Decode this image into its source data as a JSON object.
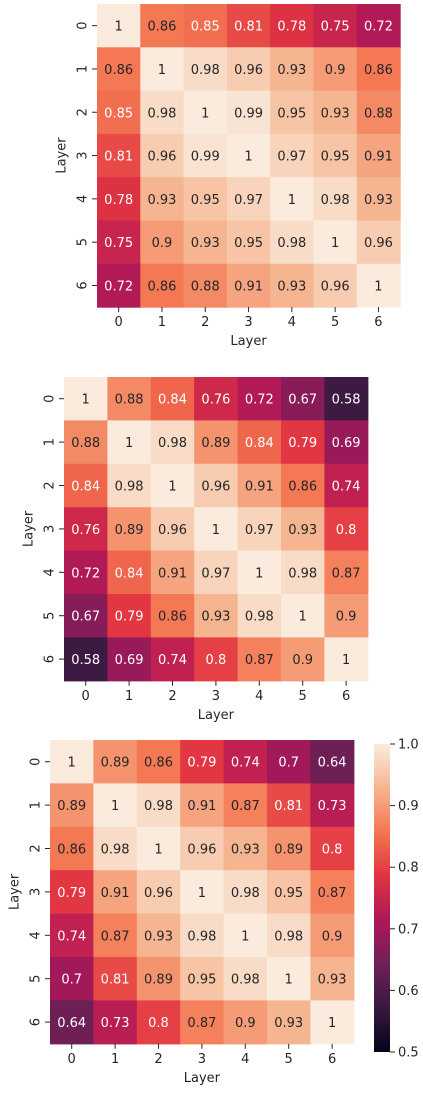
{
  "colors": {
    "colormap_stops": [
      "#03051a",
      "#36193e",
      "#701f57",
      "#ad1759",
      "#e13342",
      "#f37651",
      "#f6b48f",
      "#faebdd"
    ],
    "text_dark": "#262626",
    "text_light": "#ffffff"
  },
  "chart_data": [
    {
      "type": "heatmap",
      "title": "",
      "xlabel": "Layer",
      "ylabel": "Layer",
      "x_ticks": [
        "0",
        "1",
        "2",
        "3",
        "4",
        "5",
        "6"
      ],
      "y_ticks": [
        "0",
        "1",
        "2",
        "3",
        "4",
        "5",
        "6"
      ],
      "vmin": 0.5,
      "vmax": 1.0,
      "values": [
        [
          1,
          0.86,
          0.85,
          0.81,
          0.78,
          0.75,
          0.72
        ],
        [
          0.86,
          1,
          0.98,
          0.96,
          0.93,
          0.9,
          0.86
        ],
        [
          0.85,
          0.98,
          1,
          0.99,
          0.95,
          0.93,
          0.88
        ],
        [
          0.81,
          0.96,
          0.99,
          1,
          0.97,
          0.95,
          0.91
        ],
        [
          0.78,
          0.93,
          0.95,
          0.97,
          1,
          0.98,
          0.93
        ],
        [
          0.75,
          0.9,
          0.93,
          0.95,
          0.98,
          1,
          0.96
        ],
        [
          0.72,
          0.86,
          0.88,
          0.91,
          0.93,
          0.96,
          1
        ]
      ]
    },
    {
      "type": "heatmap",
      "title": "",
      "xlabel": "Layer",
      "ylabel": "Layer",
      "x_ticks": [
        "0",
        "1",
        "2",
        "3",
        "4",
        "5",
        "6"
      ],
      "y_ticks": [
        "0",
        "1",
        "2",
        "3",
        "4",
        "5",
        "6"
      ],
      "vmin": 0.5,
      "vmax": 1.0,
      "values": [
        [
          1,
          0.88,
          0.84,
          0.76,
          0.72,
          0.67,
          0.58
        ],
        [
          0.88,
          1,
          0.98,
          0.89,
          0.84,
          0.79,
          0.69
        ],
        [
          0.84,
          0.98,
          1,
          0.96,
          0.91,
          0.86,
          0.74
        ],
        [
          0.76,
          0.89,
          0.96,
          1,
          0.97,
          0.93,
          0.8
        ],
        [
          0.72,
          0.84,
          0.91,
          0.97,
          1,
          0.98,
          0.87
        ],
        [
          0.67,
          0.79,
          0.86,
          0.93,
          0.98,
          1,
          0.9
        ],
        [
          0.58,
          0.69,
          0.74,
          0.8,
          0.87,
          0.9,
          1
        ]
      ]
    },
    {
      "type": "heatmap",
      "title": "",
      "xlabel": "Layer",
      "ylabel": "Layer",
      "x_ticks": [
        "0",
        "1",
        "2",
        "3",
        "4",
        "5",
        "6"
      ],
      "y_ticks": [
        "0",
        "1",
        "2",
        "3",
        "4",
        "5",
        "6"
      ],
      "vmin": 0.5,
      "vmax": 1.0,
      "values": [
        [
          1,
          0.89,
          0.86,
          0.79,
          0.74,
          0.7,
          0.64
        ],
        [
          0.89,
          1,
          0.98,
          0.91,
          0.87,
          0.81,
          0.73
        ],
        [
          0.86,
          0.98,
          1,
          0.96,
          0.93,
          0.89,
          0.8
        ],
        [
          0.79,
          0.91,
          0.96,
          1,
          0.98,
          0.95,
          0.87
        ],
        [
          0.74,
          0.87,
          0.93,
          0.98,
          1,
          0.98,
          0.9
        ],
        [
          0.7,
          0.81,
          0.89,
          0.95,
          0.98,
          1,
          0.93
        ],
        [
          0.64,
          0.73,
          0.8,
          0.87,
          0.9,
          0.93,
          1
        ]
      ]
    }
  ],
  "colorbar": {
    "ticks": [
      "0.5",
      "0.6",
      "0.7",
      "0.8",
      "0.9",
      "1.0"
    ],
    "min": 0.5,
    "max": 1.0
  }
}
